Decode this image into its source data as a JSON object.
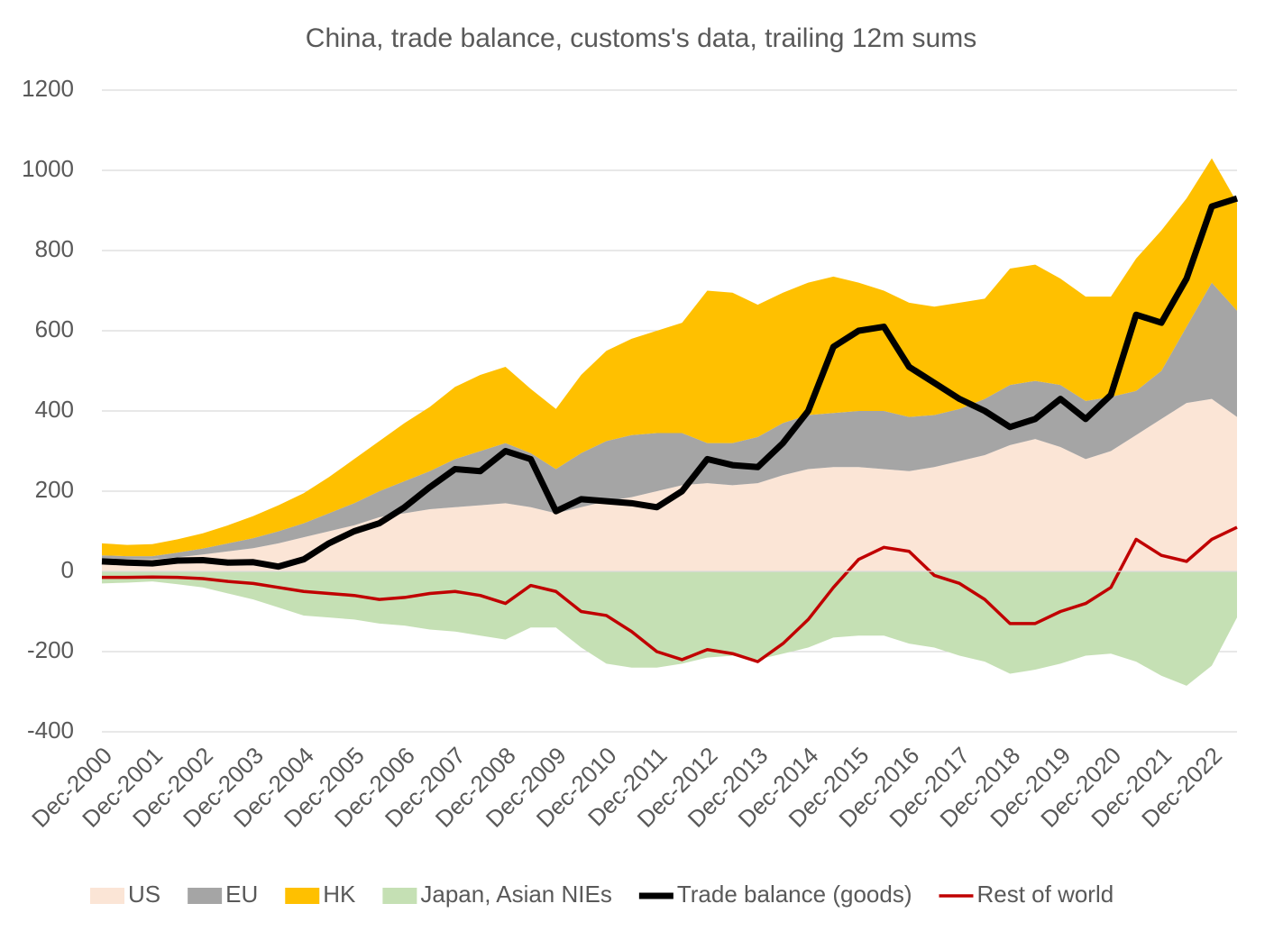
{
  "chart_data": {
    "type": "area",
    "title": "China, trade balance, customs's data, trailing 12m sums",
    "categories": [
      "Dec-2000",
      null,
      "Dec-2001",
      null,
      "Dec-2002",
      null,
      "Dec-2003",
      null,
      "Dec-2004",
      null,
      "Dec-2005",
      null,
      "Dec-2006",
      null,
      "Dec-2007",
      null,
      "Dec-2008",
      null,
      "Dec-2009",
      null,
      "Dec-2010",
      null,
      "Dec-2011",
      null,
      "Dec-2012",
      null,
      "Dec-2013",
      null,
      "Dec-2014",
      null,
      "Dec-2015",
      null,
      "Dec-2016",
      null,
      "Dec-2017",
      null,
      "Dec-2018",
      null,
      "Dec-2019",
      null,
      "Dec-2020",
      null,
      "Dec-2021",
      null,
      "Dec-2022",
      null
    ],
    "series": [
      {
        "name": "US",
        "type": "area",
        "stack": "pos",
        "color": "#fbe5d6",
        "values": [
          30,
          30,
          30,
          35,
          42,
          50,
          58,
          70,
          85,
          100,
          115,
          135,
          145,
          155,
          160,
          165,
          170,
          160,
          145,
          160,
          175,
          185,
          200,
          215,
          220,
          215,
          220,
          240,
          255,
          260,
          260,
          255,
          250,
          260,
          275,
          290,
          315,
          330,
          310,
          280,
          300,
          340,
          380,
          420,
          430,
          385
        ]
      },
      {
        "name": "EU",
        "type": "area",
        "stack": "pos",
        "color": "#a5a5a5",
        "values": [
          10,
          8,
          8,
          12,
          15,
          20,
          25,
          30,
          35,
          45,
          55,
          65,
          80,
          95,
          120,
          135,
          150,
          135,
          110,
          135,
          150,
          155,
          145,
          130,
          100,
          105,
          115,
          130,
          135,
          135,
          140,
          145,
          135,
          130,
          130,
          140,
          150,
          145,
          155,
          145,
          135,
          110,
          120,
          190,
          290,
          265
        ]
      },
      {
        "name": "HK",
        "type": "area",
        "stack": "pos",
        "color": "#ffc000",
        "values": [
          30,
          28,
          30,
          33,
          38,
          45,
          55,
          65,
          75,
          90,
          110,
          125,
          145,
          160,
          180,
          190,
          190,
          160,
          150,
          195,
          225,
          240,
          255,
          275,
          380,
          375,
          330,
          325,
          330,
          340,
          320,
          300,
          285,
          270,
          265,
          250,
          290,
          290,
          265,
          260,
          250,
          330,
          350,
          320,
          310,
          270
        ]
      },
      {
        "name": "Japan, Asian NIEs",
        "type": "area",
        "stack": "neg",
        "color": "#c5e0b4",
        "values": [
          -30,
          -28,
          -25,
          -32,
          -40,
          -55,
          -70,
          -90,
          -110,
          -115,
          -120,
          -130,
          -135,
          -145,
          -150,
          -160,
          -170,
          -140,
          -140,
          -190,
          -230,
          -240,
          -240,
          -230,
          -215,
          -210,
          -220,
          -205,
          -190,
          -165,
          -160,
          -160,
          -180,
          -190,
          -210,
          -225,
          -255,
          -245,
          -230,
          -210,
          -205,
          -225,
          -260,
          -285,
          -235,
          -115
        ]
      },
      {
        "name": "Trade balance (goods)",
        "type": "line",
        "color": "#000000",
        "width": 7,
        "values": [
          25,
          22,
          20,
          27,
          28,
          22,
          23,
          12,
          30,
          70,
          100,
          120,
          160,
          210,
          255,
          250,
          300,
          280,
          150,
          180,
          175,
          170,
          160,
          200,
          280,
          265,
          260,
          320,
          400,
          560,
          600,
          610,
          510,
          470,
          430,
          400,
          360,
          380,
          430,
          380,
          440,
          640,
          620,
          730,
          910,
          930
        ]
      },
      {
        "name": "Rest of world",
        "type": "line",
        "color": "#c00000",
        "width": 3.5,
        "values": [
          -15,
          -15,
          -14,
          -15,
          -18,
          -25,
          -30,
          -40,
          -50,
          -55,
          -60,
          -70,
          -65,
          -55,
          -50,
          -60,
          -80,
          -35,
          -50,
          -100,
          -110,
          -150,
          -200,
          -220,
          -195,
          -205,
          -225,
          -180,
          -120,
          -40,
          30,
          60,
          50,
          -10,
          -30,
          -70,
          -130,
          -130,
          -100,
          -80,
          -40,
          80,
          40,
          25,
          80,
          110
        ]
      }
    ],
    "ylim": [
      -400,
      1200
    ],
    "yticks": [
      -400,
      -200,
      0,
      200,
      400,
      600,
      800,
      1000,
      1200
    ],
    "grid": true,
    "legend": "bottom"
  }
}
